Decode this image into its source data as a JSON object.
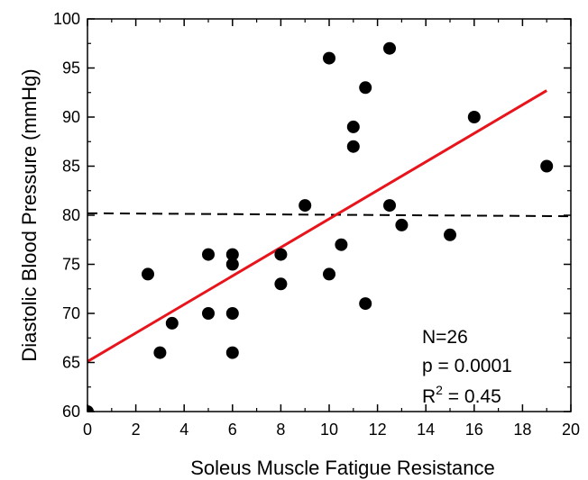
{
  "chart_data": {
    "type": "scatter",
    "title": "",
    "xlabel": "Soleus Muscle Fatigue Resistance",
    "ylabel": "Diastolic Blood Pressure (mmHg)",
    "xlim": [
      0,
      20
    ],
    "ylim": [
      60,
      100
    ],
    "x_ticks": [
      0,
      2,
      4,
      6,
      8,
      10,
      12,
      14,
      16,
      18,
      20
    ],
    "y_ticks": [
      60,
      65,
      70,
      75,
      80,
      85,
      90,
      95,
      100
    ],
    "grid": false,
    "points": [
      {
        "x": 0,
        "y": 60
      },
      {
        "x": 2.5,
        "y": 74
      },
      {
        "x": 3,
        "y": 66
      },
      {
        "x": 3.5,
        "y": 69
      },
      {
        "x": 5,
        "y": 76
      },
      {
        "x": 5,
        "y": 70
      },
      {
        "x": 6,
        "y": 76
      },
      {
        "x": 6,
        "y": 75
      },
      {
        "x": 6,
        "y": 70
      },
      {
        "x": 6,
        "y": 66
      },
      {
        "x": 8,
        "y": 76
      },
      {
        "x": 8,
        "y": 73
      },
      {
        "x": 9,
        "y": 81
      },
      {
        "x": 10,
        "y": 96
      },
      {
        "x": 10,
        "y": 74
      },
      {
        "x": 10.5,
        "y": 77
      },
      {
        "x": 11,
        "y": 89
      },
      {
        "x": 11,
        "y": 87
      },
      {
        "x": 11.5,
        "y": 93
      },
      {
        "x": 11.5,
        "y": 71
      },
      {
        "x": 12.5,
        "y": 97
      },
      {
        "x": 12.5,
        "y": 81
      },
      {
        "x": 13,
        "y": 79
      },
      {
        "x": 15,
        "y": 78
      },
      {
        "x": 16,
        "y": 90
      },
      {
        "x": 19,
        "y": 85
      }
    ],
    "regression_line": {
      "x": [
        0,
        19
      ],
      "y": [
        65.1,
        92.7
      ],
      "color": "#e8141c"
    },
    "reference_line": {
      "x": [
        0,
        20
      ],
      "y": [
        80.2,
        79.9
      ],
      "style": "dashed",
      "color": "#000000"
    },
    "marker_color": "#000000",
    "annotations": {
      "n": "N=26",
      "p": "p = 0.0001",
      "r2_prefix": "R",
      "r2_sup": "2",
      "r2_suffix": " = 0.45"
    }
  }
}
